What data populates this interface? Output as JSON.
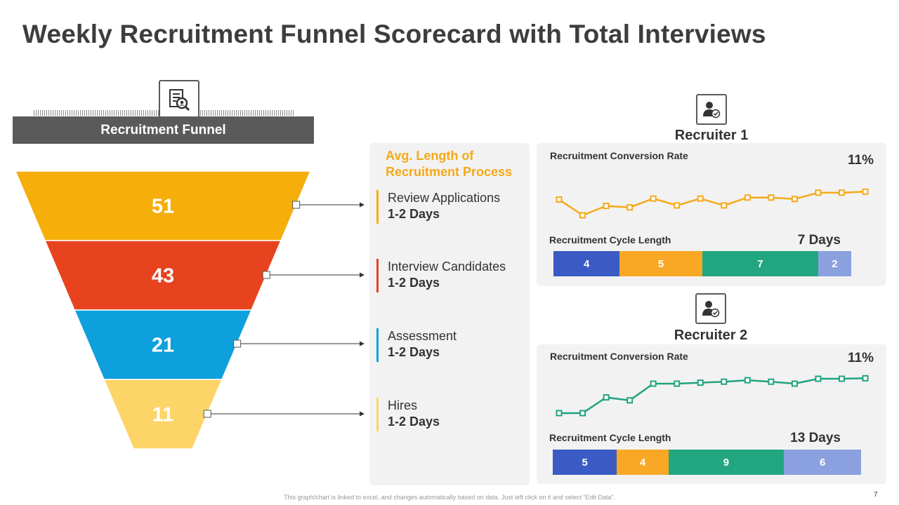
{
  "title": "Weekly Recruitment Funnel Scorecard with Total Interviews",
  "funnel_header": "Recruitment Funnel",
  "avg_title": "Avg. Length of Recruitment Process",
  "colors": {
    "yellow": "#f5ae0a",
    "red": "#e8431f",
    "blue": "#0ea0dc",
    "light_yellow": "#fdd468",
    "orange_line": "#f5a918",
    "green_line": "#1fa37e",
    "seg_blue": "#3a5bc4",
    "seg_orange": "#f9a825",
    "seg_green": "#21a67f",
    "seg_lightblue": "#8aa0df"
  },
  "chart_data": [
    {
      "type": "funnel",
      "title": "Recruitment Funnel",
      "categories": [
        "Review Applications",
        "Interview Candidates",
        "Assessment",
        "Hires"
      ],
      "values": [
        51,
        43,
        21,
        11
      ],
      "durations": [
        "1-2 Days",
        "1-2 Days",
        "1-2 Days",
        "1-2 Days"
      ]
    },
    {
      "type": "line",
      "recruiter": "Recruiter 1",
      "title": "Recruitment Conversion Rate",
      "summary": "11%",
      "x": [
        1,
        2,
        3,
        4,
        5,
        6,
        7,
        8,
        9,
        10,
        11,
        12,
        13,
        14
      ],
      "values": [
        6.5,
        3.3,
        5.2,
        4.9,
        6.7,
        5.3,
        6.7,
        5.3,
        6.9,
        6.9,
        6.6,
        7.9,
        7.9,
        8.1
      ],
      "ylim": [
        0,
        12
      ]
    },
    {
      "type": "stacked_bar",
      "recruiter": "Recruiter 1",
      "title": "Recruitment Cycle Length",
      "summary": "7 Days",
      "values": [
        4,
        5,
        7,
        2
      ]
    },
    {
      "type": "line",
      "recruiter": "Recruiter 2",
      "title": "Recruitment Conversion Rate",
      "summary": "11%",
      "x": [
        1,
        2,
        3,
        4,
        5,
        6,
        7,
        8,
        9,
        10,
        11,
        12,
        13,
        14
      ],
      "values": [
        3.0,
        3.0,
        6.2,
        5.6,
        9.0,
        9.0,
        9.2,
        9.4,
        9.7,
        9.4,
        9.0,
        10.0,
        10.0,
        10.1
      ],
      "ylim": [
        0,
        12
      ]
    },
    {
      "type": "stacked_bar",
      "recruiter": "Recruiter 2",
      "title": "Recruitment Cycle Length",
      "summary": "13 Days",
      "values": [
        5,
        4,
        9,
        6
      ]
    }
  ],
  "footer": "This graph/chart is linked to excel, and changes automatically based on data. Just left click on it and select “Edit Data”.",
  "page_number": "7"
}
